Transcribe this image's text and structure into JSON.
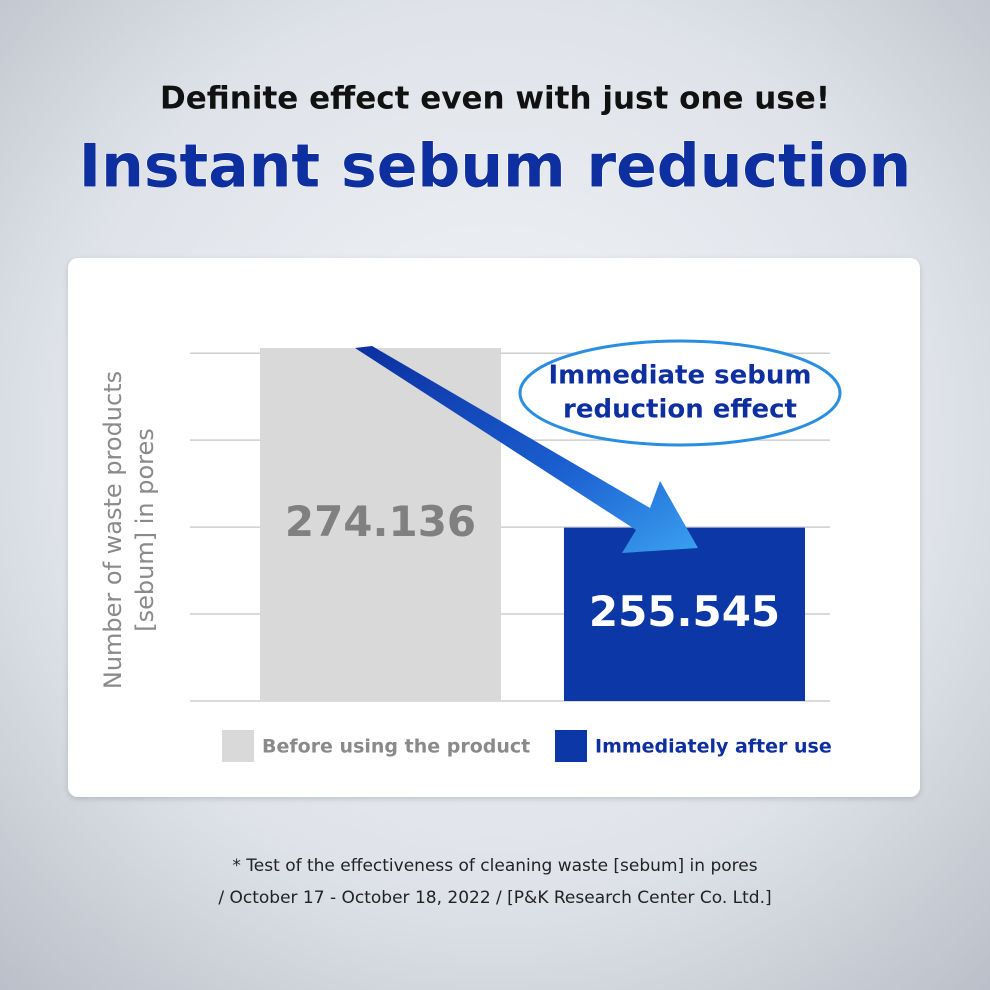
{
  "chart_data": {
    "type": "bar",
    "subtitle": "Definite effect even with just one use!",
    "title": "Instant sebum reduction",
    "ylabel": [
      "Number of waste products",
      "[sebum] in pores"
    ],
    "categories": [
      null
    ],
    "series": [
      {
        "name": "Before using the product",
        "color": "#d9d9d9",
        "values": [
          274.136
        ]
      },
      {
        "name": "Immediately after use",
        "color": "#0b38a6",
        "values": [
          255.545
        ]
      }
    ],
    "ylim": [
      237.6,
      276
    ],
    "yticks": [
      237.6,
      246.6,
      255.6,
      264.6,
      273.6
    ],
    "grid": true,
    "annotation": [
      "Immediate sebum",
      "reduction effect"
    ],
    "footnote": [
      "* Test of the effectiveness of cleaning waste [sebum] in pores",
      "/ October 17 - October 18, 2022 / [P&K Research Center Co. Ltd.]"
    ]
  }
}
